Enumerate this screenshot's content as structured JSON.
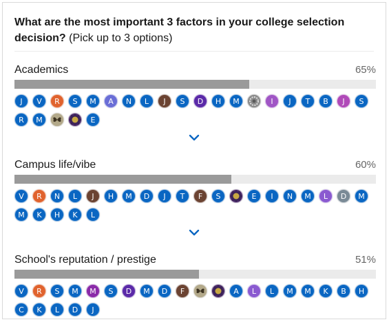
{
  "poll": {
    "question_bold": "What are the most important 3 factors in your college selection decision?",
    "question_hint": " (Pick up to 3 options)"
  },
  "options": [
    {
      "label": "Academics",
      "percent_text": "65%",
      "percent": 65,
      "voters": [
        {
          "initial": "J",
          "color": "#0a66c2"
        },
        {
          "initial": "V",
          "color": "#0a66c2"
        },
        {
          "initial": "R",
          "color": "#e0632e"
        },
        {
          "initial": "S",
          "color": "#0a66c2"
        },
        {
          "initial": "M",
          "color": "#0a66c2"
        },
        {
          "initial": "A",
          "color": "#6a6ed6"
        },
        {
          "initial": "N",
          "color": "#0a66c2"
        },
        {
          "initial": "L",
          "color": "#0a66c2"
        },
        {
          "initial": "J",
          "color": "#6b4332"
        },
        {
          "initial": "S",
          "color": "#0a66c2"
        },
        {
          "initial": "D",
          "color": "#5b2aa8"
        },
        {
          "initial": "H",
          "color": "#0a66c2"
        },
        {
          "initial": "M",
          "color": "#0a66c2"
        },
        {
          "initial": "",
          "color": "#7c7c7c",
          "icon": "profile-photo-icon"
        },
        {
          "initial": "I",
          "color": "#a056c5"
        },
        {
          "initial": "J",
          "color": "#0a66c2"
        },
        {
          "initial": "T",
          "color": "#0a66c2"
        },
        {
          "initial": "B",
          "color": "#0a66c2"
        },
        {
          "initial": "J",
          "color": "#b04ab8"
        },
        {
          "initial": "S",
          "color": "#0a66c2"
        },
        {
          "initial": "R",
          "color": "#0a66c2"
        },
        {
          "initial": "M",
          "color": "#0a66c2"
        },
        {
          "initial": "",
          "color": "#9a8f72",
          "icon": "butterfly-photo-icon"
        },
        {
          "initial": "",
          "color": "#4b2a6a",
          "icon": "badge-photo-icon"
        },
        {
          "initial": "E",
          "color": "#0a66c2"
        }
      ]
    },
    {
      "label": "Campus life/vibe",
      "percent_text": "60%",
      "percent": 60,
      "voters": [
        {
          "initial": "V",
          "color": "#0a66c2"
        },
        {
          "initial": "R",
          "color": "#e0632e"
        },
        {
          "initial": "N",
          "color": "#0a66c2"
        },
        {
          "initial": "L",
          "color": "#0a66c2"
        },
        {
          "initial": "J",
          "color": "#6b4332"
        },
        {
          "initial": "H",
          "color": "#0a66c2"
        },
        {
          "initial": "M",
          "color": "#0a66c2"
        },
        {
          "initial": "D",
          "color": "#0a66c2"
        },
        {
          "initial": "J",
          "color": "#0a66c2"
        },
        {
          "initial": "T",
          "color": "#0a66c2"
        },
        {
          "initial": "F",
          "color": "#6b4332"
        },
        {
          "initial": "S",
          "color": "#0a66c2"
        },
        {
          "initial": "",
          "color": "#4b2a6a",
          "icon": "badge-photo-icon"
        },
        {
          "initial": "E",
          "color": "#0a66c2"
        },
        {
          "initial": "I",
          "color": "#0a66c2"
        },
        {
          "initial": "N",
          "color": "#0a66c2"
        },
        {
          "initial": "M",
          "color": "#0a66c2"
        },
        {
          "initial": "L",
          "color": "#8a5ad0"
        },
        {
          "initial": "D",
          "color": "#7a8a96"
        },
        {
          "initial": "M",
          "color": "#0a66c2"
        },
        {
          "initial": "M",
          "color": "#0a66c2"
        },
        {
          "initial": "K",
          "color": "#0a66c2"
        },
        {
          "initial": "H",
          "color": "#0a66c2"
        },
        {
          "initial": "K",
          "color": "#0a66c2"
        },
        {
          "initial": "L",
          "color": "#0a66c2"
        }
      ]
    },
    {
      "label": "School's reputation / prestige",
      "percent_text": "51%",
      "percent": 51,
      "voters": [
        {
          "initial": "V",
          "color": "#0a66c2"
        },
        {
          "initial": "R",
          "color": "#e0632e"
        },
        {
          "initial": "S",
          "color": "#0a66c2"
        },
        {
          "initial": "M",
          "color": "#0a66c2"
        },
        {
          "initial": "M",
          "color": "#8a2aa8"
        },
        {
          "initial": "S",
          "color": "#0a66c2"
        },
        {
          "initial": "D",
          "color": "#5b2aa8"
        },
        {
          "initial": "M",
          "color": "#0a66c2"
        },
        {
          "initial": "D",
          "color": "#0a66c2"
        },
        {
          "initial": "F",
          "color": "#6b4332"
        },
        {
          "initial": "",
          "color": "#9a8f72",
          "icon": "butterfly-photo-icon"
        },
        {
          "initial": "",
          "color": "#4b2a6a",
          "icon": "badge-photo-icon"
        },
        {
          "initial": "A",
          "color": "#0a66c2"
        },
        {
          "initial": "L",
          "color": "#8a5ad0"
        },
        {
          "initial": "L",
          "color": "#0a66c2"
        },
        {
          "initial": "M",
          "color": "#0a66c2"
        },
        {
          "initial": "M",
          "color": "#0a66c2"
        },
        {
          "initial": "K",
          "color": "#0a66c2"
        },
        {
          "initial": "B",
          "color": "#0a66c2"
        },
        {
          "initial": "H",
          "color": "#0a66c2"
        },
        {
          "initial": "C",
          "color": "#0a66c2"
        },
        {
          "initial": "K",
          "color": "#0a66c2"
        },
        {
          "initial": "L",
          "color": "#0a66c2"
        },
        {
          "initial": "D",
          "color": "#0a66c2"
        },
        {
          "initial": "J",
          "color": "#0a66c2"
        }
      ]
    }
  ],
  "icons": {
    "expand": "chevron-down-icon"
  },
  "colors": {
    "accent": "#0a66c2",
    "bar_fill": "#9a9a9a",
    "bar_track": "#ebebeb"
  }
}
